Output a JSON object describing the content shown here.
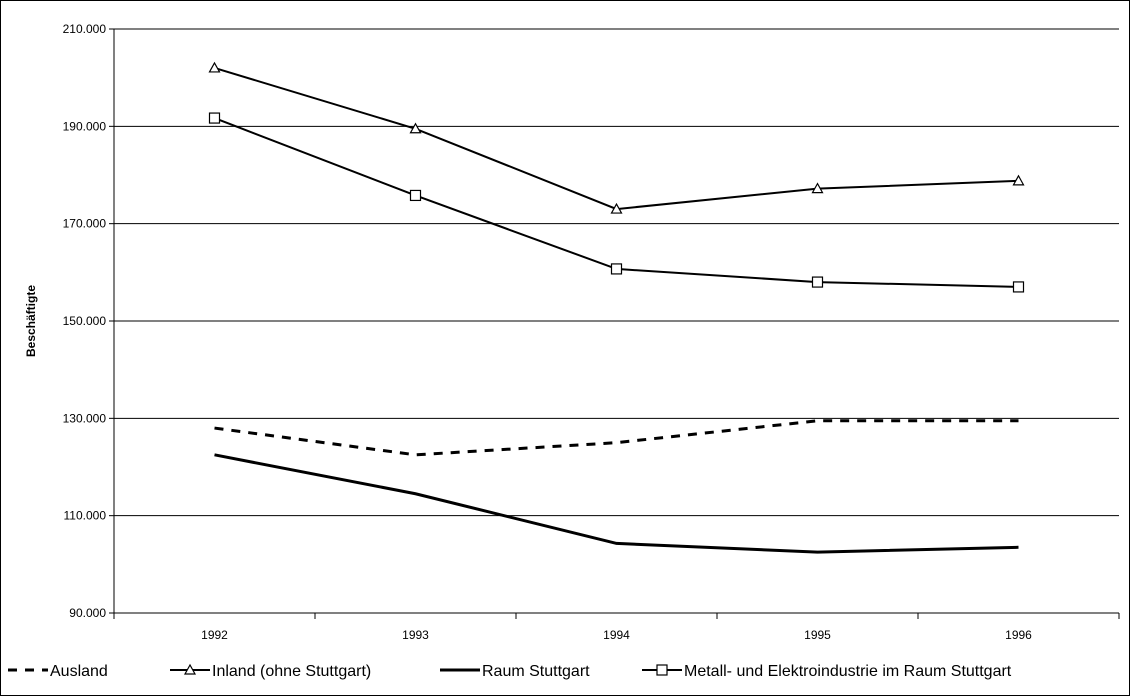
{
  "chart_data": {
    "type": "line",
    "title": "",
    "xlabel": "",
    "ylabel": "Beschäftigte",
    "categories": [
      "1992",
      "1993",
      "1994",
      "1995",
      "1996"
    ],
    "ylim": [
      90000,
      210000
    ],
    "yticks": [
      90000,
      110000,
      130000,
      150000,
      170000,
      190000,
      210000
    ],
    "ytick_labels": [
      "90.000",
      "110.000",
      "130.000",
      "150.000",
      "170.000",
      "190.000",
      "210.000"
    ],
    "grid": true,
    "legend_position": "bottom",
    "series": [
      {
        "name": "Ausland",
        "values": [
          128000,
          122500,
          125000,
          129500,
          129500
        ],
        "color": "#000000",
        "style": "dashed",
        "marker": "none"
      },
      {
        "name": "Inland (ohne Stuttgart)",
        "values": [
          202000,
          189500,
          173000,
          177200,
          178800
        ],
        "color": "#000000",
        "style": "solid",
        "marker": "triangle"
      },
      {
        "name": "Raum Stuttgart",
        "values": [
          122500,
          114500,
          104300,
          102500,
          103500
        ],
        "color": "#000000",
        "style": "solid-thick",
        "marker": "none"
      },
      {
        "name": "Metall- und Elektroindustrie im Raum  Stuttgart",
        "values": [
          191700,
          175800,
          160700,
          158000,
          157000
        ],
        "color": "#000000",
        "style": "solid",
        "marker": "square"
      }
    ]
  }
}
